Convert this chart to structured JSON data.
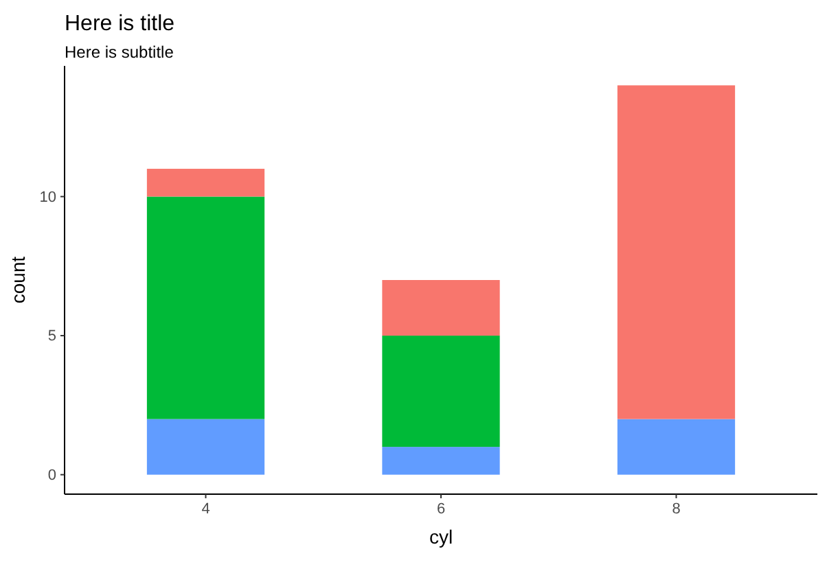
{
  "chart_data": {
    "type": "bar",
    "title": "Here is title",
    "subtitle": "Here is subtitle",
    "xlabel": "cyl",
    "ylabel": "count",
    "categories": [
      "4",
      "6",
      "8"
    ],
    "stacked": true,
    "series": [
      {
        "color": "#619cff",
        "values": [
          2,
          1,
          2
        ]
      },
      {
        "color": "#00ba38",
        "values": [
          8,
          4,
          0
        ]
      },
      {
        "color": "#f8766d",
        "values": [
          1,
          2,
          12
        ]
      }
    ],
    "ylim": [
      -0.7,
      14.7
    ],
    "yticks": [
      0,
      5,
      10
    ]
  }
}
